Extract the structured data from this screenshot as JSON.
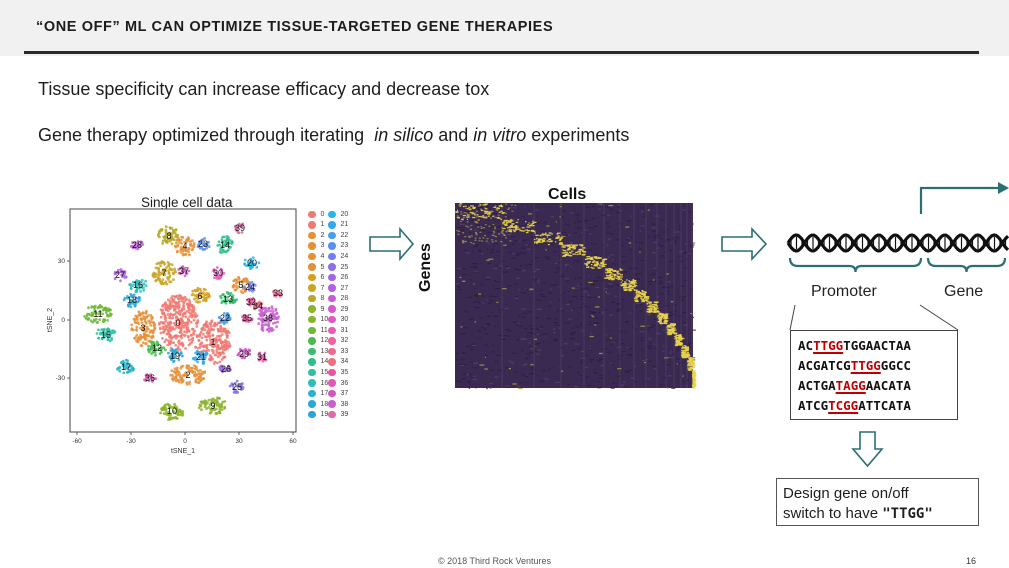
{
  "slide": {
    "title": "“ONE OFF” ML CAN OPTIMIZE TISSUE-TARGETED GENE THERAPIES",
    "bullets": [
      "Tissue specificity can increase efficacy and decrease tox",
      {
        "before": "Gene therapy optimized through iterating  ",
        "italic1": "in silico",
        "middle": " and ",
        "italic2": "in vitro",
        "after": " experiments"
      }
    ],
    "footer": "© 2018 Third Rock Ventures",
    "page_number": "16"
  },
  "tsne": {
    "title": "Single cell data",
    "xlabel": "tSNE_1",
    "ylabel": "tSNE_2",
    "xticks": [
      "-60",
      "-30",
      "0",
      "30",
      "60"
    ],
    "yticks": [
      "30",
      "0",
      "-30"
    ],
    "cluster_labels": [
      "0",
      "1",
      "2",
      "3",
      "4",
      "5",
      "6",
      "7",
      "8",
      "9",
      "10",
      "11",
      "12",
      "13",
      "14",
      "15",
      "16",
      "17",
      "18",
      "19",
      "20",
      "21",
      "22",
      "23",
      "24",
      "25",
      "26",
      "27",
      "28",
      "29",
      "30",
      "31",
      "32",
      "33",
      "34",
      "35",
      "36",
      "37",
      "38",
      "39"
    ],
    "cluster_colors": [
      "#f07a72",
      "#f07a72",
      "#e69138",
      "#e69138",
      "#e69138",
      "#e69138",
      "#d4a020",
      "#c9a526",
      "#b8a826",
      "#8cb32d",
      "#8cb32d",
      "#6fb83a",
      "#4cba52",
      "#3cbc6e",
      "#2fbd8a",
      "#2ebfa5",
      "#2ebfbd",
      "#2ab3cc",
      "#2aa7d8",
      "#2aa3e0",
      "#2ab5e8",
      "#32a9ee",
      "#4a9cf2",
      "#5a8ff3",
      "#7380f2",
      "#8a72ef",
      "#a066ea",
      "#b35fe3",
      "#c55adb",
      "#d458cf",
      "#e058c0",
      "#e95cb0",
      "#ee62a0",
      "#f0688f",
      "#f06d7f",
      "#e7549a",
      "#e05aaf",
      "#d258bd",
      "#c95fd0",
      "#e06aa8"
    ]
  },
  "heatmap": {
    "xlabel": "Cells",
    "ylabel": "Genes",
    "background_color": "#3a2a52",
    "highlight_color": "#e8d44a"
  },
  "promoter": {
    "promoter_label": "Promoter",
    "gene_label": "Gene",
    "dna_color": "#111111",
    "accent_color": "#2a6f73",
    "sequences": [
      {
        "pre": "AC",
        "hl": "TTGG",
        "post": "TGGAACTAA"
      },
      {
        "pre": "ACGATCG",
        "hl": "TTGG",
        "post": "GGCC"
      },
      {
        "pre": "ACTGA",
        "hl": "TAGG",
        "post": "AACATA"
      },
      {
        "pre": "ATCG",
        "hl": "TCGG",
        "post": "ATTCATA"
      }
    ],
    "highlight_color": "#c00000"
  },
  "design": {
    "line1": "Design gene on/off",
    "line2_prefix": "switch to have ",
    "line2_code": "\"TTGG\""
  }
}
